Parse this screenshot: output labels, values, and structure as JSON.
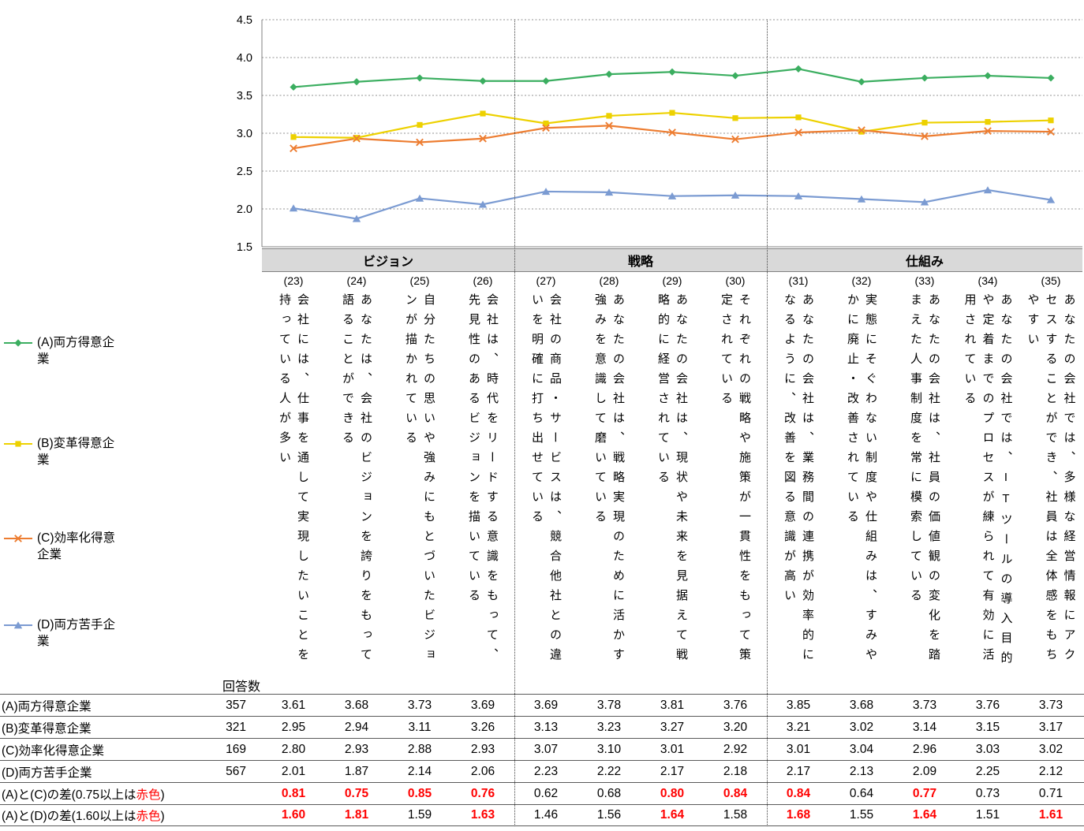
{
  "colors": {
    "red": "#FF0000",
    "band_bg": "#D9D9D9"
  },
  "chart_data": {
    "type": "line",
    "title": "",
    "xlabel": "",
    "ylabel": "",
    "ylim": [
      1.5,
      4.5
    ],
    "y_ticks": [
      "4.5",
      "4.0",
      "3.5",
      "3.0",
      "2.5",
      "2.0",
      "1.5"
    ],
    "grid": "dotted-horizontal",
    "legend_position": "left",
    "groups": [
      {
        "label": "ビジョン",
        "cols": 4
      },
      {
        "label": "戦略",
        "cols": 4
      },
      {
        "label": "仕組み",
        "cols": 5
      }
    ],
    "categories": [
      "(23)",
      "(24)",
      "(25)",
      "(26)",
      "(27)",
      "(28)",
      "(29)",
      "(30)",
      "(31)",
      "(32)",
      "(33)",
      "(34)",
      "(35)"
    ],
    "questions": [
      [
        "会社には、仕事を通して実現したいことを",
        "持っている人が多い"
      ],
      [
        "あなたは、会社のビジョンを誇りをもって",
        "語ることができる"
      ],
      [
        "自分たちの思いや強みにもとづいたビジョ",
        "ンが描かれている"
      ],
      [
        "会社は、時代をリードする意識をもって、",
        "先見性のあるビジョンを描いている"
      ],
      [
        "会社の商品・サービスは、競合他社との違",
        "いを明確に打ち出せている"
      ],
      [
        "あなたの会社は、戦略実現のために活かす",
        "強みを意識して磨いている"
      ],
      [
        "あなたの会社は、現状や未来を見据えて戦",
        "略的に経営されている"
      ],
      [
        "それぞれの戦略や施策が一貫性をもって策",
        "定されている"
      ],
      [
        "あなたの会社は、業務間の連携が効率的に",
        "なるように、改善を図る意識が高い"
      ],
      [
        "実態にそぐわない制度や仕組みは、すみや",
        "かに廃止・改善されている"
      ],
      [
        "あなたの会社は、社員の価値観の変化を踏",
        "まえた人事制度を常に模索している"
      ],
      [
        "あなたの会社では、ITツールの導入目的",
        "や定着までのプロセスが練られて有効に活",
        "用されている"
      ],
      [
        "あなたの会社では、多様な経営情報にアク",
        "セスすることができ、社員は全体感をもち",
        "やすい"
      ]
    ],
    "series": [
      {
        "name": "(A)両方得意企業",
        "legend_lines": [
          "(A)両方得意企",
          "業"
        ],
        "color": "#3BAE60",
        "marker": "diamond",
        "values": [
          3.61,
          3.68,
          3.73,
          3.69,
          3.69,
          3.78,
          3.81,
          3.76,
          3.85,
          3.68,
          3.73,
          3.76,
          3.73
        ]
      },
      {
        "name": "(B)変革得意企業",
        "legend_lines": [
          "(B)変革得意企",
          "業"
        ],
        "color": "#EDD100",
        "marker": "square",
        "values": [
          2.95,
          2.94,
          3.11,
          3.26,
          3.13,
          3.23,
          3.27,
          3.2,
          3.21,
          3.02,
          3.14,
          3.15,
          3.17
        ]
      },
      {
        "name": "(C)効率化得意企業",
        "legend_lines": [
          "(C)効率化得意",
          "企業"
        ],
        "color": "#ED7D31",
        "marker": "x",
        "values": [
          2.8,
          2.93,
          2.88,
          2.93,
          3.07,
          3.1,
          3.01,
          2.92,
          3.01,
          3.04,
          2.96,
          3.03,
          3.02
        ]
      },
      {
        "name": "(D)両方苦手企業",
        "legend_lines": [
          "(D)両方苦手企",
          "業"
        ],
        "color": "#7B9BD2",
        "marker": "triangle",
        "values": [
          2.01,
          1.87,
          2.14,
          2.06,
          2.23,
          2.22,
          2.17,
          2.18,
          2.17,
          2.13,
          2.09,
          2.25,
          2.12
        ]
      }
    ]
  },
  "table": {
    "count_header": "回答数",
    "rows": [
      {
        "label": "(A)両方得意企業",
        "count": "357",
        "series_index": 0
      },
      {
        "label": "(B)変革得意企業",
        "count": "321",
        "series_index": 1
      },
      {
        "label": "(C)効率化得意企業",
        "count": "169",
        "series_index": 2
      },
      {
        "label": "(D)両方苦手企業",
        "count": "567",
        "series_index": 3
      },
      {
        "label_parts": [
          {
            "t": "(A)と(C)の差(0.75以上は"
          },
          {
            "t": "赤色",
            "red": true
          },
          {
            "t": ")"
          }
        ],
        "red_threshold": 0.75,
        "values": [
          "0.81",
          "0.75",
          "0.85",
          "0.76",
          "0.62",
          "0.68",
          "0.80",
          "0.84",
          "0.84",
          "0.64",
          "0.77",
          "0.73",
          "0.71"
        ]
      },
      {
        "label_parts": [
          {
            "t": "(A)と(D)の差(1.60以上は"
          },
          {
            "t": "赤色",
            "red": true
          },
          {
            "t": ")"
          }
        ],
        "red_threshold": 1.6,
        "values": [
          "1.60",
          "1.81",
          "1.59",
          "1.63",
          "1.46",
          "1.56",
          "1.64",
          "1.58",
          "1.68",
          "1.55",
          "1.64",
          "1.51",
          "1.61"
        ]
      }
    ]
  }
}
